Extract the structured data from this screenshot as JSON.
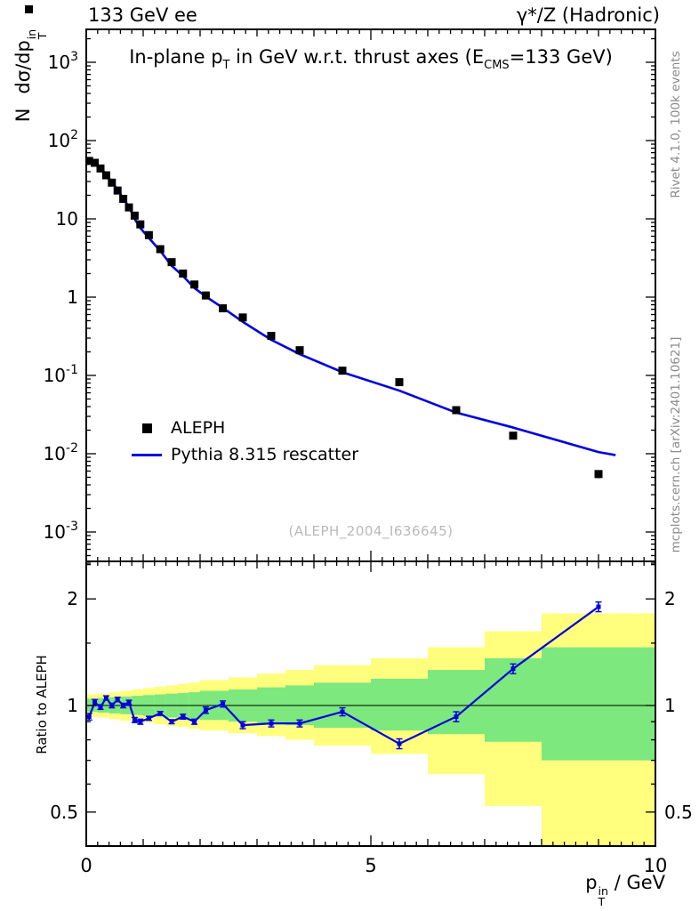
{
  "header": {
    "left": "133 GeV ee",
    "right": "γ*/Z (Hadronic)"
  },
  "title": {
    "p1": "In-plane p",
    "sub1": "T",
    "p2": " in GeV w.r.t. thrust axes (E",
    "sub2": "CMS",
    "p3": "=133 GeV)"
  },
  "y_axis_title": {
    "p1": "N",
    "p2": "dσ/dp",
    "sup": "in",
    "sub": "T"
  },
  "x_axis_title": {
    "p1": "p",
    "sup": "in",
    "sub": "T",
    "p2": " / GeV"
  },
  "ratio_axis_title": "Ratio to ALEPH",
  "legend": {
    "aleph": "ALEPH",
    "pythia": "Pythia 8.315 rescatter"
  },
  "watermark": "(ALEPH_2004_I636645)",
  "side_notes": {
    "rivet": "Rivet 4.1.0, 100k events",
    "mcplots": "mcplots.cern.ch [arXiv:2401.10621]"
  },
  "colors": {
    "pythia_blue": "#0000dd",
    "band_green": "#7de87d",
    "band_yellow": "#ffff7d",
    "marker_black": "#000000",
    "watermark_gray": "#b9b9b9",
    "side_gray": "#8a8a8a",
    "frame_black": "#000000"
  },
  "chart_data": {
    "type": "line",
    "title": "In-plane pT in GeV w.r.t. thrust axes (ECMS=133 GeV)",
    "xlabel": "pT^in / GeV",
    "ylabel": "N dsigma/dpT^in",
    "ratio_label": "Ratio to ALEPH",
    "xlim": [
      0,
      10
    ],
    "ylim_log": [
      0.0004,
      2600
    ],
    "ratio_ylim_log": [
      0.4,
      2.55
    ],
    "x_ticks": [
      {
        "v": 0,
        "t": "0"
      },
      {
        "v": 5,
        "t": "5"
      },
      {
        "v": 10,
        "t": "10"
      }
    ],
    "y_ticks": [
      {
        "v": 1000,
        "b": "10",
        "e": "3"
      },
      {
        "v": 100,
        "b": "10",
        "e": "2"
      },
      {
        "v": 10,
        "b": "10",
        "e": ""
      },
      {
        "v": 1,
        "b": "1",
        "e": ""
      },
      {
        "v": 0.1,
        "b": "10",
        "e": "-1"
      },
      {
        "v": 0.01,
        "b": "10",
        "e": "-2"
      },
      {
        "v": 0.001,
        "b": "10",
        "e": "-3"
      }
    ],
    "ratio_ticks": [
      {
        "v": 2,
        "t": "2"
      },
      {
        "v": 1,
        "t": "1"
      },
      {
        "v": 0.5,
        "t": "0.5"
      }
    ],
    "ratio_minor_ticks": [
      0.6,
      0.7,
      0.8,
      0.9,
      1.5,
      2.5
    ],
    "series": [
      {
        "name": "ALEPH",
        "type": "points",
        "x": [
          0.05,
          0.15,
          0.25,
          0.35,
          0.45,
          0.55,
          0.65,
          0.75,
          0.85,
          0.95,
          1.1,
          1.3,
          1.5,
          1.7,
          1.9,
          2.1,
          2.4,
          2.75,
          3.25,
          3.75,
          4.5,
          5.5,
          6.5,
          7.5,
          9.0
        ],
        "y": [
          55,
          52,
          44,
          36,
          29,
          23,
          18,
          14,
          11,
          8.5,
          6.2,
          4.1,
          2.8,
          2.0,
          1.45,
          1.05,
          0.72,
          0.55,
          0.32,
          0.21,
          0.115,
          0.082,
          0.036,
          0.017,
          0.0055
        ],
        "yerr_rel": [
          0.03,
          0.03,
          0.03,
          0.03,
          0.03,
          0.03,
          0.03,
          0.03,
          0.03,
          0.03,
          0.03,
          0.03,
          0.03,
          0.03,
          0.04,
          0.04,
          0.04,
          0.04,
          0.04,
          0.05,
          0.05,
          0.06,
          0.08,
          0.1,
          0.12
        ]
      },
      {
        "name": "Pythia 8.315 rescatter",
        "type": "curve",
        "x": [
          0.0,
          0.05,
          0.15,
          0.25,
          0.35,
          0.45,
          0.55,
          0.65,
          0.75,
          0.85,
          0.95,
          1.1,
          1.3,
          1.5,
          1.7,
          1.9,
          2.1,
          2.4,
          2.75,
          3.25,
          3.75,
          4.5,
          5.5,
          6.5,
          7.5,
          9.0,
          9.3
        ],
        "y": [
          50,
          51.2,
          53,
          43.6,
          37.8,
          29,
          23.9,
          18,
          14.3,
          10,
          7.65,
          5.7,
          3.9,
          2.52,
          1.86,
          1.31,
          1.02,
          0.73,
          0.484,
          0.285,
          0.187,
          0.11,
          0.064,
          0.0335,
          0.0216,
          0.0105,
          0.0096
        ]
      }
    ],
    "ratio": {
      "name": "Pythia/ALEPH",
      "x": [
        0.05,
        0.15,
        0.25,
        0.35,
        0.45,
        0.55,
        0.65,
        0.75,
        0.85,
        0.95,
        1.1,
        1.3,
        1.5,
        1.7,
        1.9,
        2.1,
        2.4,
        2.75,
        3.25,
        3.75,
        4.5,
        5.5,
        6.5,
        7.5,
        9.0
      ],
      "y": [
        0.93,
        1.02,
        0.99,
        1.05,
        1.0,
        1.04,
        1.0,
        1.02,
        0.91,
        0.9,
        0.92,
        0.95,
        0.9,
        0.93,
        0.9,
        0.97,
        1.01,
        0.88,
        0.89,
        0.89,
        0.96,
        0.78,
        0.93,
        1.27,
        1.9
      ],
      "yerr": [
        0.02,
        0.02,
        0.015,
        0.015,
        0.015,
        0.015,
        0.015,
        0.015,
        0.015,
        0.015,
        0.012,
        0.012,
        0.012,
        0.015,
        0.015,
        0.02,
        0.02,
        0.02,
        0.02,
        0.02,
        0.025,
        0.025,
        0.03,
        0.04,
        0.06
      ]
    },
    "ratio_bands": [
      [
        0.0,
        0.2,
        0.96,
        1.045,
        0.93,
        1.075
      ],
      [
        0.2,
        0.4,
        0.955,
        1.05,
        0.925,
        1.08
      ],
      [
        0.4,
        0.6,
        0.95,
        1.055,
        0.915,
        1.09
      ],
      [
        0.6,
        0.8,
        0.945,
        1.06,
        0.905,
        1.1
      ],
      [
        0.8,
        1.0,
        0.94,
        1.065,
        0.9,
        1.11
      ],
      [
        1.0,
        1.2,
        0.935,
        1.07,
        0.895,
        1.12
      ],
      [
        1.2,
        1.4,
        0.93,
        1.075,
        0.885,
        1.13
      ],
      [
        1.4,
        1.6,
        0.925,
        1.08,
        0.875,
        1.14
      ],
      [
        1.6,
        1.8,
        0.92,
        1.085,
        0.87,
        1.15
      ],
      [
        1.8,
        2.0,
        0.915,
        1.09,
        0.86,
        1.16
      ],
      [
        2.0,
        2.5,
        0.91,
        1.1,
        0.85,
        1.18
      ],
      [
        2.5,
        3.0,
        0.9,
        1.11,
        0.835,
        1.2
      ],
      [
        3.0,
        3.5,
        0.89,
        1.125,
        0.82,
        1.23
      ],
      [
        3.5,
        4.0,
        0.88,
        1.14,
        0.8,
        1.26
      ],
      [
        4.0,
        5.0,
        0.865,
        1.16,
        0.77,
        1.3
      ],
      [
        5.0,
        6.0,
        0.85,
        1.19,
        0.73,
        1.36
      ],
      [
        6.0,
        7.0,
        0.83,
        1.26,
        0.64,
        1.46
      ],
      [
        7.0,
        8.0,
        0.79,
        1.36,
        0.52,
        1.62
      ],
      [
        8.0,
        10.0,
        0.7,
        1.46,
        0.38,
        1.82
      ]
    ]
  }
}
